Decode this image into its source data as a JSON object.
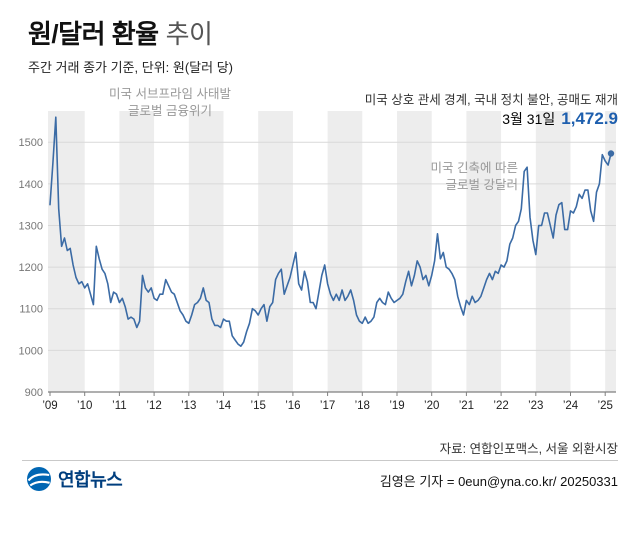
{
  "header": {
    "title_main": "원/달러 환율",
    "title_sub": "추이",
    "subtitle": "주간 거래 종가 기준, 단위: 원(달러 당)"
  },
  "annotations": {
    "crisis_line1": "미국 서브프라임 사태발",
    "crisis_line2": "글로벌 금융위기",
    "current_event": "미국 상호 관세 경계, 국내 정치 불안, 공매도 재개",
    "date_label": "3월 31일",
    "value_label": "1,472.9",
    "tightening_line1": "미국 긴축에 따른",
    "tightening_line2": "글로벌 강달러"
  },
  "footer": {
    "source": "자료: 연합인포맥스, 서울 외환시장",
    "credit": "김영은 기자 = 0eun@yna.co.kr/ 20250331",
    "logo_text": "연합뉴스"
  },
  "colors": {
    "line": "#3b6ba5",
    "value": "#1e5fae",
    "band": "#ededed",
    "grid": "#d9d9d9",
    "axis": "#7f7f7f",
    "ylabel": "#777777",
    "xlabel": "#222222",
    "logo_blue": "#0066b3",
    "logo_navy": "#003e7e"
  },
  "chart_data": {
    "type": "line",
    "title": "원/달러 환율 추이",
    "subtitle": "주간 거래 종가 기준",
    "ylabel": "원(달러 당)",
    "legend": "off",
    "grid": "horizontal",
    "x_start": 2009,
    "points_per_year": 12,
    "ylim": [
      900,
      1575
    ],
    "yticks": [
      900,
      1000,
      1100,
      1200,
      1300,
      1400,
      1500
    ],
    "xtick_labels": [
      "’09",
      "’10",
      "’11",
      "’12",
      "’13",
      "’14",
      "’15",
      "’16",
      "’17",
      "’18",
      "’19",
      "’20",
      "’21",
      "’22",
      "’23",
      "’24",
      "’25"
    ],
    "last_point": {
      "date": "3월 31일",
      "value": 1472.9
    },
    "values": [
      1350,
      1450,
      1560,
      1340,
      1250,
      1270,
      1240,
      1245,
      1205,
      1175,
      1160,
      1165,
      1150,
      1160,
      1135,
      1110,
      1250,
      1220,
      1195,
      1185,
      1160,
      1115,
      1140,
      1135,
      1115,
      1125,
      1105,
      1075,
      1080,
      1075,
      1055,
      1070,
      1180,
      1150,
      1140,
      1150,
      1125,
      1120,
      1135,
      1135,
      1170,
      1155,
      1140,
      1135,
      1115,
      1095,
      1085,
      1070,
      1065,
      1085,
      1110,
      1115,
      1125,
      1150,
      1120,
      1115,
      1075,
      1060,
      1060,
      1055,
      1075,
      1070,
      1070,
      1035,
      1025,
      1015,
      1010,
      1020,
      1045,
      1065,
      1100,
      1095,
      1085,
      1100,
      1110,
      1070,
      1105,
      1115,
      1170,
      1185,
      1195,
      1135,
      1155,
      1175,
      1205,
      1235,
      1160,
      1145,
      1190,
      1165,
      1115,
      1115,
      1100,
      1140,
      1180,
      1205,
      1160,
      1135,
      1120,
      1135,
      1120,
      1145,
      1120,
      1130,
      1145,
      1120,
      1085,
      1070,
      1065,
      1080,
      1065,
      1070,
      1080,
      1115,
      1125,
      1115,
      1110,
      1140,
      1125,
      1115,
      1120,
      1125,
      1135,
      1165,
      1190,
      1155,
      1180,
      1215,
      1200,
      1170,
      1180,
      1155,
      1180,
      1215,
      1280,
      1220,
      1235,
      1200,
      1195,
      1185,
      1170,
      1130,
      1105,
      1085,
      1120,
      1110,
      1130,
      1115,
      1120,
      1130,
      1150,
      1170,
      1185,
      1170,
      1190,
      1185,
      1205,
      1200,
      1215,
      1255,
      1270,
      1300,
      1310,
      1340,
      1430,
      1440,
      1320,
      1265,
      1230,
      1300,
      1300,
      1330,
      1330,
      1300,
      1270,
      1325,
      1350,
      1355,
      1290,
      1290,
      1335,
      1330,
      1345,
      1375,
      1365,
      1385,
      1385,
      1335,
      1310,
      1380,
      1400,
      1470,
      1455,
      1445,
      1472.9
    ]
  }
}
